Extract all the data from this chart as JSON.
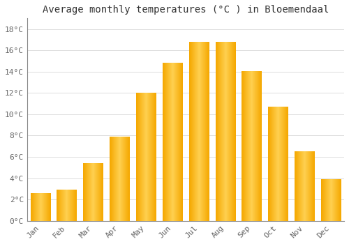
{
  "title": "Average monthly temperatures (°C ) in Bloemendaal",
  "months": [
    "Jan",
    "Feb",
    "Mar",
    "Apr",
    "May",
    "Jun",
    "Jul",
    "Aug",
    "Sep",
    "Oct",
    "Nov",
    "Dec"
  ],
  "values": [
    2.6,
    2.9,
    5.4,
    7.9,
    12.0,
    14.8,
    16.8,
    16.8,
    14.0,
    10.7,
    6.5,
    3.9
  ],
  "bar_color": "#FFA500",
  "bar_color_light": "#FFD040",
  "background_color": "#FFFFFF",
  "grid_color": "#DDDDDD",
  "ylim": [
    0,
    19
  ],
  "yticks": [
    0,
    2,
    4,
    6,
    8,
    10,
    12,
    14,
    16,
    18
  ],
  "ytick_labels": [
    "0°C",
    "2°C",
    "4°C",
    "6°C",
    "8°C",
    "10°C",
    "12°C",
    "14°C",
    "16°C",
    "18°C"
  ],
  "title_fontsize": 10,
  "tick_fontsize": 8,
  "font_family": "monospace",
  "figsize": [
    5.0,
    3.5
  ],
  "dpi": 100
}
